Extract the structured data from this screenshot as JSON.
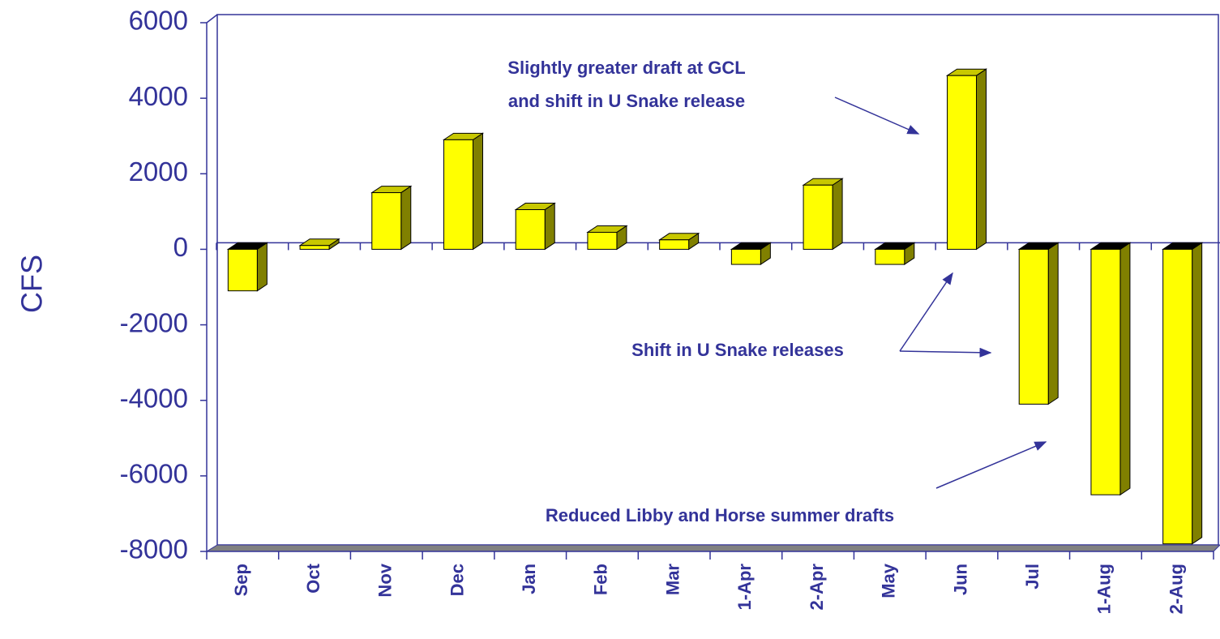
{
  "chart_data": {
    "type": "bar3d",
    "y_label": "CFS",
    "categories": [
      "Sep",
      "Oct",
      "Nov",
      "Dec",
      "Jan",
      "Feb",
      "Mar",
      "1-Apr",
      "2-Apr",
      "May",
      "Jun",
      "Jul",
      "1-Aug",
      "2-Aug"
    ],
    "values": [
      -1100,
      100,
      1500,
      2900,
      1050,
      450,
      250,
      -400,
      1700,
      -400,
      4600,
      -4100,
      -6500,
      -7800
    ],
    "color": "#ffff00",
    "ylim": [
      -8000,
      6000
    ],
    "yticks": [
      6000,
      4000,
      2000,
      0,
      -2000,
      -4000,
      -6000,
      -8000
    ],
    "annotations": [
      "Slightly greater draft at GCL",
      "and shift in U Snake release",
      "Shift in U Snake releases",
      "Reduced Libby and Horse summer drafts"
    ]
  }
}
